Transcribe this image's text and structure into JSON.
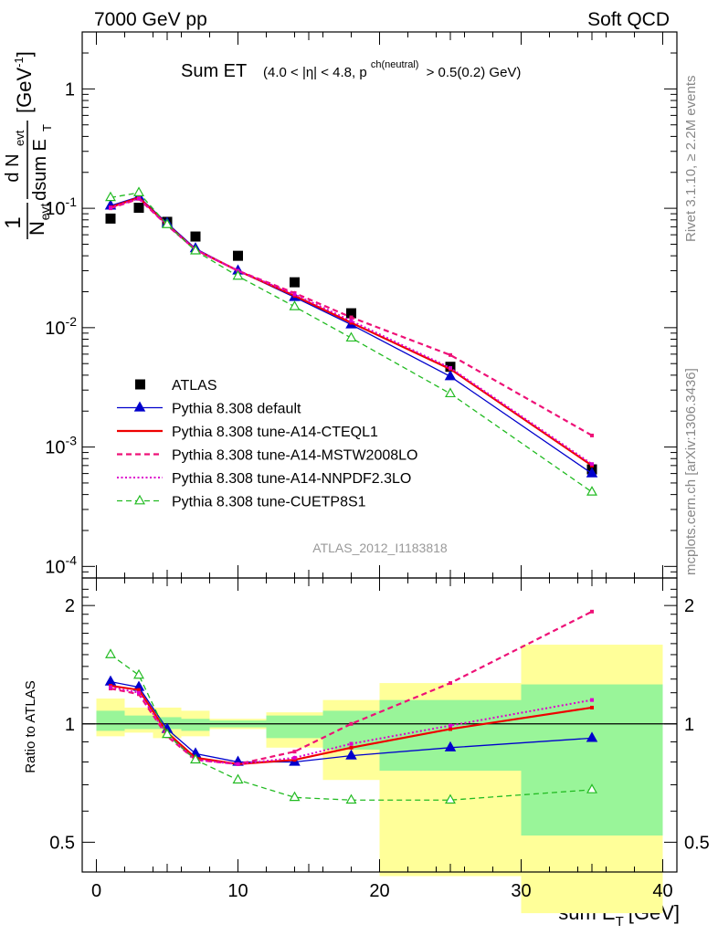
{
  "header": {
    "energy_label": "7000 GeV pp",
    "category_label": "Soft QCD"
  },
  "side_labels": {
    "rivet": "Rivet 3.1.10, ≥ 2.2M events",
    "mcplots": "mcplots.cern.ch [arXiv:1306.3436]"
  },
  "chart_data": [
    {
      "type": "line",
      "panel": "main",
      "title_main": "Sum ET",
      "title_cut_pre": "(4.0 < |η| < 4.8, p",
      "title_cut_sup": "ch(neutral)",
      "title_cut_post": "> 0.5(0.2) GeV)",
      "ylabel": "1/N_evt dN_evt/dsum E_T [GeV^-1]",
      "ylabel_parts": {
        "num_frac": "1",
        "den_frac": "N",
        "den_sub": "evt",
        "d": "d N",
        "d_sub": "evt",
        "dsum": "dsum E",
        "dsum_sub": "T",
        "unit": "[GeV",
        "unit_sup": "-1",
        "unit_close": "]"
      },
      "yscale": "log",
      "ylim": [
        8e-05,
        3.0
      ],
      "xlim": [
        -1,
        41
      ],
      "y_ticks": [
        "10^-4",
        "10^-3",
        "10^-2",
        "10^-1",
        "1"
      ],
      "watermark": "ATLAS_2012_I1183818",
      "legend_position": "bottom-left",
      "series": [
        {
          "name": "ATLAS",
          "style": "data",
          "color": "#000000",
          "x": [
            1,
            3,
            5,
            7,
            10,
            14,
            18,
            25,
            35
          ],
          "y": [
            0.082,
            0.101,
            0.077,
            0.058,
            0.04,
            0.024,
            0.0132,
            0.0047,
            0.00065
          ]
        },
        {
          "name": "Pythia 8.308 default",
          "style": "solid-triangle",
          "color": "#0000cc",
          "x": [
            1,
            3,
            5,
            7,
            10,
            14,
            18,
            25,
            35
          ],
          "y": [
            0.105,
            0.125,
            0.075,
            0.046,
            0.03,
            0.018,
            0.0106,
            0.0039,
            0.0006
          ]
        },
        {
          "name": "Pythia 8.308 tune-A14-CTEQL1",
          "style": "solid",
          "color": "#ee0000",
          "x": [
            1,
            3,
            5,
            7,
            10,
            14,
            18,
            25,
            35
          ],
          "y": [
            0.102,
            0.123,
            0.073,
            0.045,
            0.03,
            0.0185,
            0.011,
            0.0045,
            0.0007
          ]
        },
        {
          "name": "Pythia 8.308 tune-A14-MSTW2008LO",
          "style": "dashed",
          "color": "#ee1177",
          "x": [
            1,
            3,
            5,
            7,
            10,
            14,
            18,
            25,
            35
          ],
          "y": [
            0.1,
            0.12,
            0.072,
            0.045,
            0.03,
            0.0195,
            0.0122,
            0.0059,
            0.00125
          ]
        },
        {
          "name": "Pythia 8.308 tune-A14-NNPDF2.3LO",
          "style": "dotted",
          "color": "#dd00cc",
          "x": [
            1,
            3,
            5,
            7,
            10,
            14,
            18,
            25,
            35
          ],
          "y": [
            0.101,
            0.121,
            0.072,
            0.045,
            0.03,
            0.019,
            0.0114,
            0.0046,
            0.00072
          ]
        },
        {
          "name": "Pythia 8.308 tune-CUETP8S1",
          "style": "dashed-open-triangle",
          "color": "#22bb22",
          "x": [
            1,
            3,
            5,
            7,
            10,
            14,
            18,
            25,
            35
          ],
          "y": [
            0.123,
            0.135,
            0.073,
            0.044,
            0.027,
            0.015,
            0.0082,
            0.0028,
            0.00042
          ]
        }
      ]
    },
    {
      "type": "line",
      "panel": "ratio",
      "ylabel": "Ratio to ATLAS",
      "yscale": "log",
      "ylim": [
        0.42,
        2.35
      ],
      "xlim": [
        -1,
        41
      ],
      "x_ticks": [
        0,
        10,
        20,
        30,
        40
      ],
      "y_ticks": [
        0.5,
        1,
        2
      ],
      "xlabel_main": "sum E",
      "xlabel_sub": "T",
      "xlabel_unit": "[GeV]",
      "uncertainty_bands": [
        {
          "x0": 0,
          "x1": 2,
          "green": [
            0.96,
            1.08
          ],
          "yellow": [
            0.93,
            1.16
          ]
        },
        {
          "x0": 2,
          "x1": 4,
          "green": [
            0.97,
            1.05
          ],
          "yellow": [
            0.95,
            1.1
          ]
        },
        {
          "x0": 4,
          "x1": 6,
          "green": [
            0.97,
            1.04
          ],
          "yellow": [
            0.92,
            1.1
          ]
        },
        {
          "x0": 6,
          "x1": 8,
          "green": [
            0.96,
            1.03
          ],
          "yellow": [
            0.93,
            1.08
          ]
        },
        {
          "x0": 8,
          "x1": 12,
          "green": [
            0.98,
            1.02
          ],
          "yellow": [
            0.97,
            1.03
          ]
        },
        {
          "x0": 12,
          "x1": 16,
          "green": [
            0.92,
            1.05
          ],
          "yellow": [
            0.87,
            1.07
          ]
        },
        {
          "x0": 16,
          "x1": 20,
          "green": [
            0.86,
            1.08
          ],
          "yellow": [
            0.72,
            1.15
          ]
        },
        {
          "x0": 20,
          "x1": 30,
          "green": [
            0.76,
            1.15
          ],
          "yellow": [
            0.41,
            1.27
          ]
        },
        {
          "x0": 30,
          "x1": 40,
          "green": [
            0.52,
            1.26
          ],
          "yellow": [
            0.33,
            1.59
          ]
        }
      ],
      "series": [
        {
          "name": "Pythia 8.308 default",
          "style": "solid-triangle",
          "color": "#0000cc",
          "x": [
            1,
            3,
            5,
            7,
            10,
            14,
            18,
            25,
            35
          ],
          "y": [
            1.28,
            1.24,
            0.97,
            0.84,
            0.8,
            0.8,
            0.83,
            0.87,
            0.92
          ]
        },
        {
          "name": "Pythia 8.308 tune-A14-CTEQL1",
          "style": "solid",
          "color": "#ee0000",
          "x": [
            1,
            3,
            5,
            7,
            10,
            14,
            18,
            25,
            35
          ],
          "y": [
            1.25,
            1.22,
            0.95,
            0.82,
            0.79,
            0.81,
            0.87,
            0.97,
            1.1
          ]
        },
        {
          "name": "Pythia 8.308 tune-A14-MSTW2008LO",
          "style": "dashed",
          "color": "#ee1177",
          "x": [
            1,
            3,
            5,
            7,
            10,
            14,
            18,
            25,
            35
          ],
          "y": [
            1.23,
            1.19,
            0.93,
            0.81,
            0.79,
            0.85,
            1.0,
            1.27,
            1.93
          ]
        },
        {
          "name": "Pythia 8.308 tune-A14-NNPDF2.3LO",
          "style": "dotted",
          "color": "#dd00cc",
          "x": [
            1,
            3,
            5,
            7,
            10,
            14,
            18,
            25,
            35
          ],
          "y": [
            1.24,
            1.2,
            0.94,
            0.81,
            0.79,
            0.82,
            0.89,
            0.99,
            1.15
          ]
        },
        {
          "name": "Pythia 8.308 tune-CUETP8S1",
          "style": "dashed-open-triangle",
          "color": "#22bb22",
          "x": [
            1,
            3,
            5,
            7,
            10,
            14,
            18,
            25,
            35
          ],
          "y": [
            1.5,
            1.33,
            0.94,
            0.81,
            0.72,
            0.65,
            0.64,
            0.64,
            0.68
          ]
        }
      ]
    }
  ]
}
